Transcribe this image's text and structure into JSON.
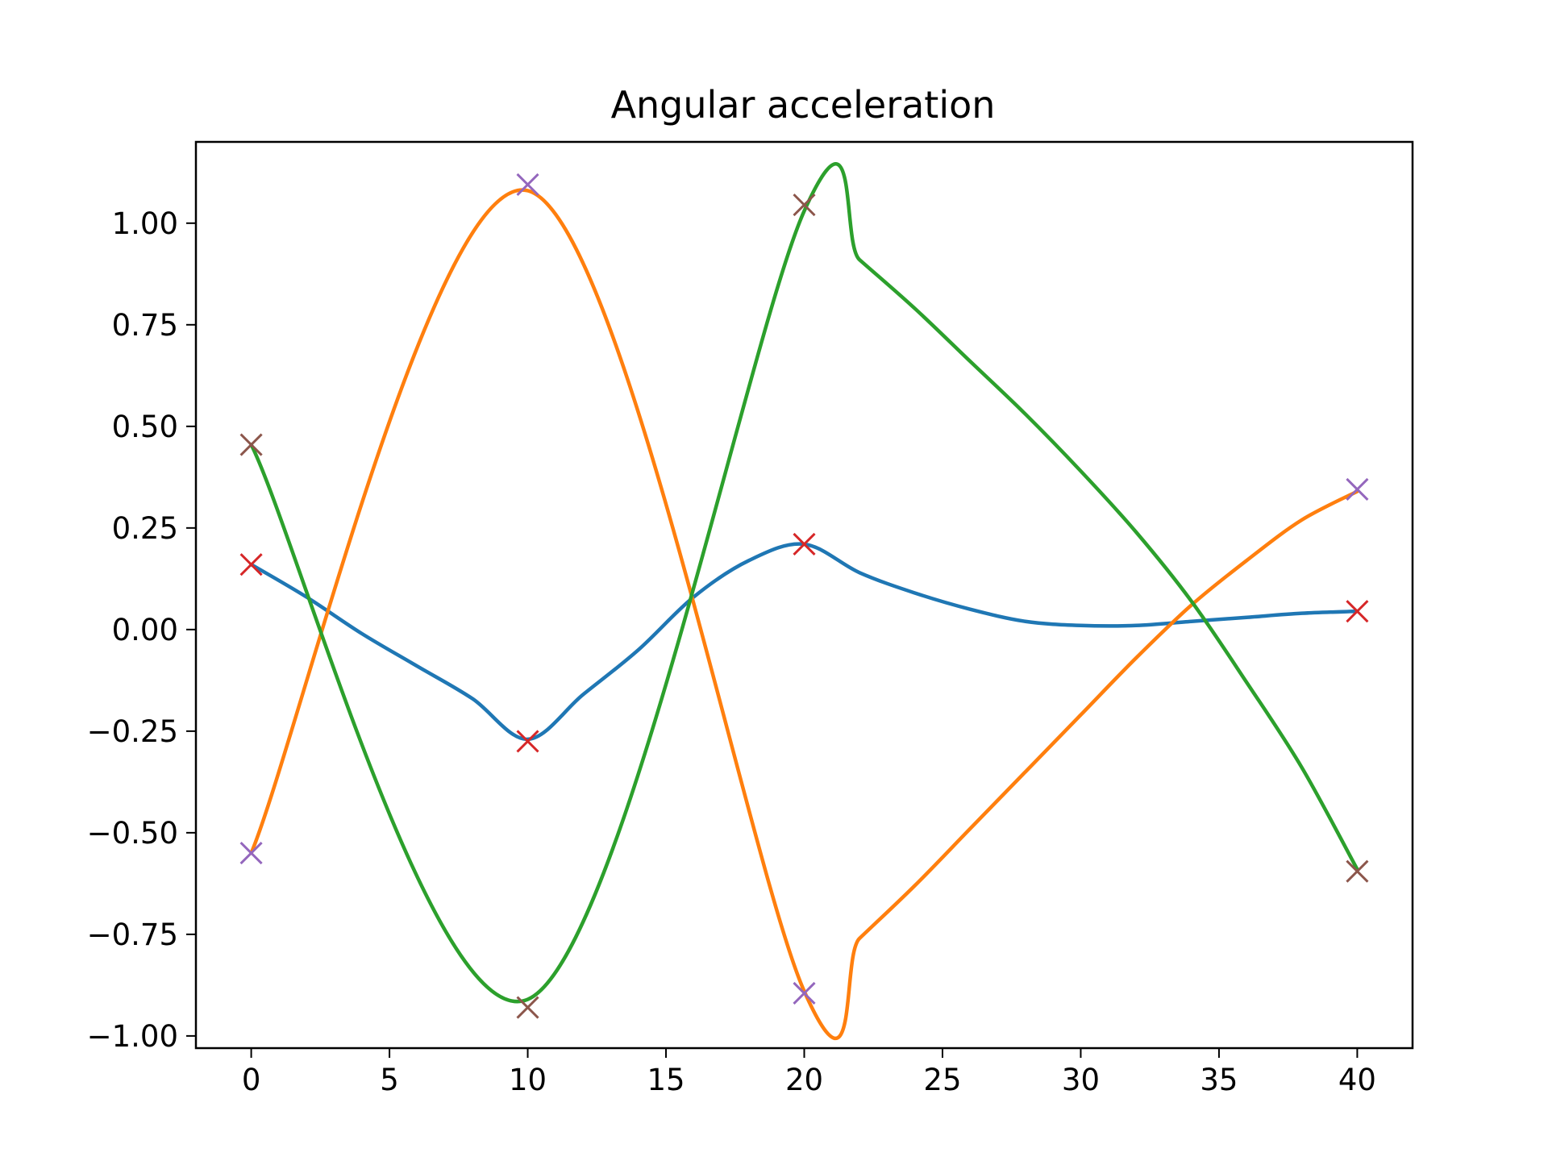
{
  "chart_data": {
    "type": "line",
    "title": "Angular acceleration",
    "xlabel": "",
    "ylabel": "",
    "xlim": [
      -2,
      42
    ],
    "ylim": [
      -1.03,
      1.2
    ],
    "grid": false,
    "legend": "none",
    "x_ticks": [
      0,
      5,
      10,
      15,
      20,
      25,
      30,
      35,
      40
    ],
    "y_ticks": [
      -1.0,
      -0.75,
      -0.5,
      -0.25,
      0.0,
      0.25,
      0.5,
      0.75,
      1.0
    ],
    "x_tick_labels": [
      "0",
      "5",
      "10",
      "15",
      "20",
      "25",
      "30",
      "35",
      "40"
    ],
    "y_tick_labels": [
      "−1.00",
      "−0.75",
      "−0.50",
      "−0.25",
      "0.00",
      "0.25",
      "0.50",
      "0.75",
      "1.00"
    ],
    "series": [
      {
        "color": "#1f77b4",
        "x": [
          0,
          2,
          4,
          6,
          8,
          10,
          12,
          14,
          16,
          18,
          20,
          22,
          24,
          26,
          28,
          30,
          32,
          34,
          36,
          38,
          40
        ],
        "values": [
          0.16,
          0.08,
          -0.01,
          -0.09,
          -0.17,
          -0.27,
          -0.16,
          -0.05,
          0.08,
          0.17,
          0.21,
          0.14,
          0.09,
          0.05,
          0.02,
          0.01,
          0.01,
          0.02,
          0.03,
          0.04,
          0.045
        ]
      },
      {
        "color": "#ff7f0e",
        "x": [
          0,
          10,
          20,
          22,
          24,
          26,
          28,
          30,
          32,
          34,
          36,
          38,
          40
        ],
        "values": [
          -0.55,
          1.08,
          -0.89,
          -0.76,
          -0.63,
          -0.49,
          -0.35,
          -0.21,
          -0.07,
          0.06,
          0.17,
          0.27,
          0.34
        ]
      },
      {
        "color": "#2ca02c",
        "x": [
          0,
          10,
          20,
          22,
          24,
          26,
          28,
          30,
          32,
          34,
          36,
          38,
          40
        ],
        "values": [
          0.455,
          -0.91,
          1.03,
          0.91,
          0.79,
          0.66,
          0.53,
          0.39,
          0.24,
          0.07,
          -0.13,
          -0.34,
          -0.59
        ]
      }
    ],
    "markers": [
      {
        "color": "#d62728",
        "symbol": "x",
        "x": [
          0,
          10,
          20,
          40
        ],
        "values": [
          0.16,
          -0.275,
          0.21,
          0.045
        ]
      },
      {
        "color": "#9467bd",
        "symbol": "x",
        "x": [
          0,
          10,
          20,
          40
        ],
        "values": [
          -0.55,
          1.095,
          -0.895,
          0.345
        ]
      },
      {
        "color": "#8c564b",
        "symbol": "x",
        "x": [
          0,
          10,
          20,
          40
        ],
        "values": [
          0.455,
          -0.93,
          1.045,
          -0.595
        ]
      }
    ]
  }
}
